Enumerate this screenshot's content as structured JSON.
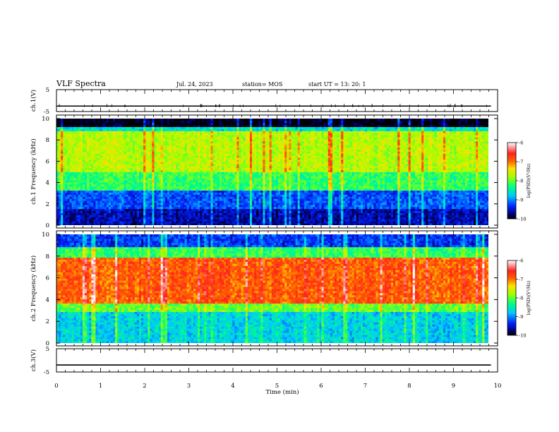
{
  "header": {
    "title": "VLF Spectra",
    "date": "Jul. 24, 2023",
    "station": "station= MOS",
    "start_ut": "start  UT  =   13: 20: 1"
  },
  "chart_data": [
    {
      "type": "line",
      "panel": "ch1-voltage",
      "ylabel": "ch.1(V)",
      "ylim": [
        -5,
        5
      ],
      "y_ticks": [
        "5",
        "-5"
      ],
      "xlim": [
        0,
        10
      ],
      "series": [
        {
          "name": "ch.1",
          "approx_level_v": -2.5
        }
      ]
    },
    {
      "type": "heatmap",
      "panel": "ch1-spectrogram",
      "ylabel": "ch.1 Frequency (kHz)",
      "ylim": [
        0,
        10
      ],
      "y_ticks": [
        "0",
        "2",
        "4",
        "6",
        "8",
        "10"
      ],
      "xlim": [
        0,
        9.85
      ],
      "colorbar": {
        "label": "log(PSD)(V²/Hz)",
        "range": [
          -10,
          -6
        ],
        "ticks": [
          "-6",
          "-7",
          "-8",
          "-9",
          "-10"
        ]
      },
      "bands": [
        {
          "from_khz": 0,
          "to_khz": 1.6,
          "level": -9.6
        },
        {
          "from_khz": 1.6,
          "to_khz": 3.2,
          "level": -9.2
        },
        {
          "from_khz": 3.2,
          "to_khz": 5.0,
          "level": -8.2
        },
        {
          "from_khz": 5.0,
          "to_khz": 8.8,
          "level": -7.7
        },
        {
          "from_khz": 8.8,
          "to_khz": 9.3,
          "level": -8.6
        },
        {
          "from_khz": 9.3,
          "to_khz": 10,
          "level": -10
        }
      ]
    },
    {
      "type": "heatmap",
      "panel": "ch2-spectrogram",
      "ylabel": "ch.2 Frequency (kHz)",
      "ylim": [
        0,
        10
      ],
      "y_ticks": [
        "0",
        "2",
        "4",
        "6",
        "8",
        "10"
      ],
      "xlim": [
        0,
        9.85
      ],
      "colorbar": {
        "label": "log(PSD)(V²/Hz)",
        "range": [
          -10,
          -6
        ],
        "ticks": [
          "-6",
          "-7",
          "-8",
          "-9",
          "-10"
        ]
      },
      "bands": [
        {
          "from_khz": 0,
          "to_khz": 2.8,
          "level": -8.7
        },
        {
          "from_khz": 2.8,
          "to_khz": 3.6,
          "level": -8.0
        },
        {
          "from_khz": 3.6,
          "to_khz": 7.8,
          "level": -6.9
        },
        {
          "from_khz": 7.8,
          "to_khz": 8.8,
          "level": -8.2
        },
        {
          "from_khz": 8.8,
          "to_khz": 10,
          "level": -9.3
        }
      ]
    },
    {
      "type": "line",
      "panel": "ch3-voltage",
      "ylabel": "ch.3(V)",
      "ylim": [
        -5,
        5
      ],
      "y_ticks": [
        "5",
        "-5"
      ],
      "xlim": [
        0,
        10
      ],
      "series": [
        {
          "name": "ch.3",
          "approx_level_v": -2.0
        }
      ]
    }
  ],
  "x_axis": {
    "label": "Time  (min)",
    "ticks": [
      "0",
      "1",
      "2",
      "3",
      "4",
      "5",
      "6",
      "7",
      "8",
      "9",
      "10"
    ],
    "range": [
      0,
      10
    ]
  }
}
